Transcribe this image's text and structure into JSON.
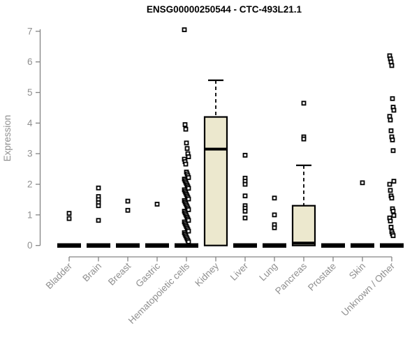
{
  "chart_data": {
    "type": "boxplot",
    "title": "ENSG00000250544 - CTC-493L21.1",
    "xlabel": "",
    "ylabel": "Expression",
    "ylim": [
      0,
      7
    ],
    "yticks": [
      0,
      1,
      2,
      3,
      4,
      5,
      6,
      7
    ],
    "grid": false,
    "legend": "none",
    "colors": {
      "box_fill": "#ece8ce",
      "box_border": "#000000",
      "axis": "#848484",
      "tick_text": "#8f8f8f",
      "title_text": "#000000",
      "marker": "#000000"
    },
    "categories": [
      "Bladder",
      "Brain",
      "Breast",
      "Gastric",
      "Hematopoietic cells",
      "Kidney",
      "Liver",
      "Lung",
      "Pancreas",
      "Prostate",
      "Skin",
      "Unknown / Other"
    ],
    "boxes": [
      {
        "category": "Bladder",
        "q1": 0,
        "median": 0,
        "q3": 0,
        "whisker_low": 0,
        "whisker_high": 0,
        "outliers": [
          1.05,
          0.88
        ]
      },
      {
        "category": "Brain",
        "q1": 0,
        "median": 0,
        "q3": 0,
        "whisker_low": 0,
        "whisker_high": 0,
        "outliers": [
          1.88,
          1.6,
          1.5,
          1.4,
          1.3,
          0.82
        ]
      },
      {
        "category": "Breast",
        "q1": 0,
        "median": 0,
        "q3": 0,
        "whisker_low": 0,
        "whisker_high": 0,
        "outliers": [
          1.45,
          1.15
        ]
      },
      {
        "category": "Gastric",
        "q1": 0,
        "median": 0,
        "q3": 0,
        "whisker_low": 0,
        "whisker_high": 0,
        "outliers": [
          1.35
        ]
      },
      {
        "category": "Hematopoietic cells",
        "q1": 0,
        "median": 0,
        "q3": 0,
        "whisker_low": 0,
        "whisker_high": 0,
        "outliers": [
          7.05,
          3.95,
          3.8,
          3.35,
          3.17,
          3.0,
          2.9,
          2.82,
          2.74,
          2.66,
          2.4,
          2.34,
          2.28,
          2.22,
          2.17,
          2.12,
          2.07,
          2.02,
          1.97,
          1.92,
          1.87,
          1.82,
          1.77,
          1.72,
          1.67,
          1.62,
          1.57,
          1.52,
          1.47,
          1.42,
          1.37,
          1.32,
          1.27,
          1.22,
          1.17,
          1.12,
          1.07,
          1.02,
          0.97,
          0.92,
          0.87,
          0.82,
          0.77,
          0.72,
          0.67,
          0.62,
          0.57,
          0.52,
          0.47,
          0.42,
          0.37,
          0.32,
          0.27,
          0.22,
          0.17,
          0.12
        ]
      },
      {
        "category": "Kidney",
        "q1": 0,
        "median": 3.15,
        "q3": 4.2,
        "whisker_low": 0,
        "whisker_high": 5.4,
        "outliers": []
      },
      {
        "category": "Liver",
        "q1": 0,
        "median": 0,
        "q3": 0,
        "whisker_low": 0,
        "whisker_high": 0,
        "outliers": [
          2.95,
          2.2,
          2.1,
          2.0,
          1.62,
          1.3,
          1.22,
          1.12,
          0.9
        ]
      },
      {
        "category": "Lung",
        "q1": 0,
        "median": 0,
        "q3": 0,
        "whisker_low": 0,
        "whisker_high": 0,
        "outliers": [
          1.55,
          1.0,
          0.68,
          0.58
        ]
      },
      {
        "category": "Pancreas",
        "q1": 0,
        "median": 0.08,
        "q3": 1.3,
        "whisker_low": 0,
        "whisker_high": 2.62,
        "outliers": [
          4.65,
          3.55,
          3.48
        ]
      },
      {
        "category": "Prostate",
        "q1": 0,
        "median": 0,
        "q3": 0,
        "whisker_low": 0,
        "whisker_high": 0,
        "outliers": []
      },
      {
        "category": "Skin",
        "q1": 0,
        "median": 0,
        "q3": 0,
        "whisker_low": 0,
        "whisker_high": 0,
        "outliers": [
          2.05
        ]
      },
      {
        "category": "Unknown / Other",
        "q1": 0,
        "median": 0,
        "q3": 0,
        "whisker_low": 0,
        "whisker_high": 0,
        "outliers": [
          6.2,
          6.1,
          6.0,
          5.88,
          4.8,
          4.52,
          4.42,
          4.22,
          4.1,
          3.75,
          3.55,
          3.45,
          3.1,
          2.1,
          2.0,
          1.8,
          1.62,
          1.55,
          1.2,
          1.12,
          0.98,
          0.9,
          0.8,
          0.6,
          0.45,
          0.38,
          0.32
        ]
      }
    ]
  }
}
